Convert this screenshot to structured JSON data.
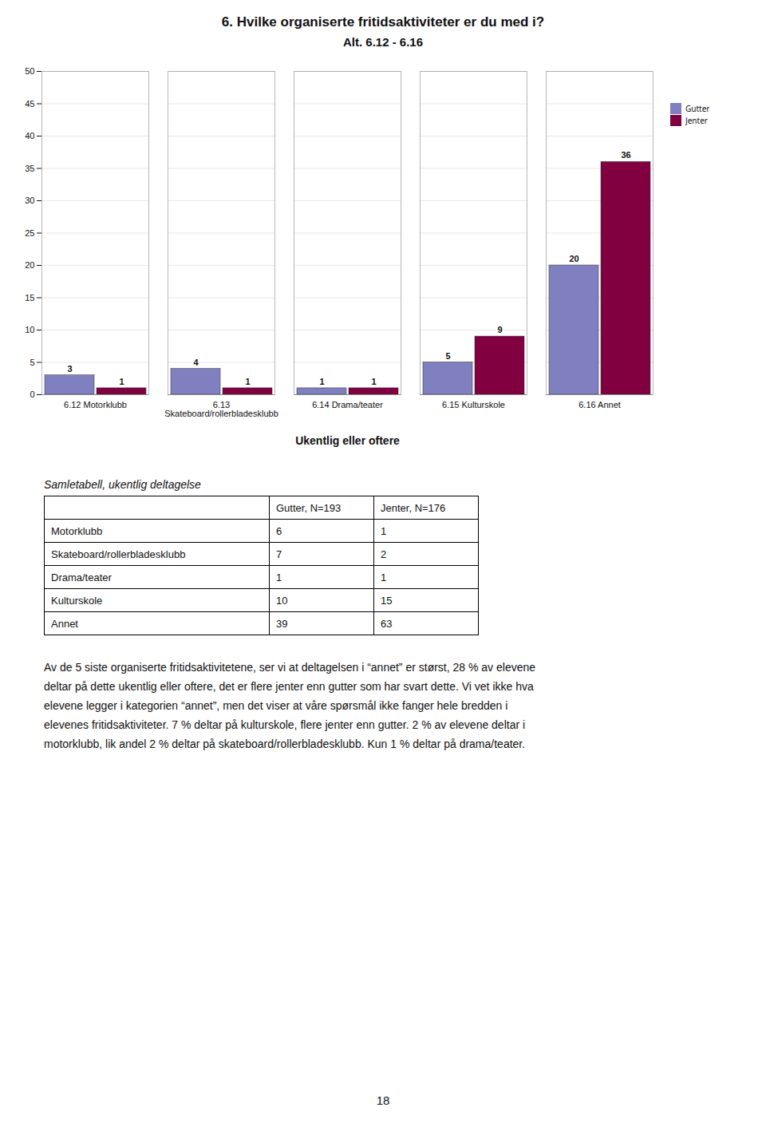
{
  "chart_data": {
    "type": "bar",
    "title": "6. Hvilke organiserte fritidsaktiviteter er du med i?",
    "subtitle": "Alt. 6.12 - 6.16",
    "categories": [
      "6.12 Motorklubb",
      "6.13\nSkateboard/rollerbladesklubb",
      "6.14 Drama/teater",
      "6.15 Kulturskole",
      "6.16 Annet"
    ],
    "xlabel": "Ukentlig eller oftere",
    "series": [
      {
        "name": "Gutter",
        "color": "#8080C0",
        "values": [
          3,
          4,
          1,
          5,
          20
        ]
      },
      {
        "name": "Jenter",
        "color": "#800040",
        "values": [
          1,
          1,
          1,
          9,
          36
        ]
      }
    ],
    "ylim": [
      0,
      50
    ],
    "yticks": [
      0,
      5,
      10,
      15,
      20,
      25,
      30,
      35,
      40,
      45,
      50
    ],
    "grid": true,
    "legend": "right",
    "data_labels": true
  },
  "table": {
    "title": "Samletabell, ukentlig deltagelse",
    "columns": [
      "Gutter, N=193",
      "Jenter, N=176"
    ],
    "rows": [
      [
        "Motorklubb",
        "6",
        "1"
      ],
      [
        "Skateboard/rollerbladesklubb",
        "7",
        "2"
      ],
      [
        "Drama/teater",
        "1",
        "1"
      ],
      [
        "Kulturskole",
        "10",
        "15"
      ],
      [
        "Annet",
        "39",
        "63"
      ]
    ]
  },
  "paragraph": [
    "Av de 5 siste organiserte fritidsaktivitetene, ser vi at deltagelsen i “annet” er størst, 28 % av elevene",
    "deltar på dette ukentlig eller oftere, det er flere jenter enn gutter som har svart dette. Vi vet ikke hva",
    "elevene legger i kategorien “annet”, men det viser at våre spørsmål ikke fanger hele bredden i",
    "elevenes fritidsaktiviteter. 7 % deltar på kulturskole, flere jenter enn gutter. 2 % av elevene deltar i",
    "motorklubb, lik andel 2 % deltar på skateboard/rollerbladesklubb. Kun 1 % deltar på drama/teater."
  ],
  "page_number": "18"
}
